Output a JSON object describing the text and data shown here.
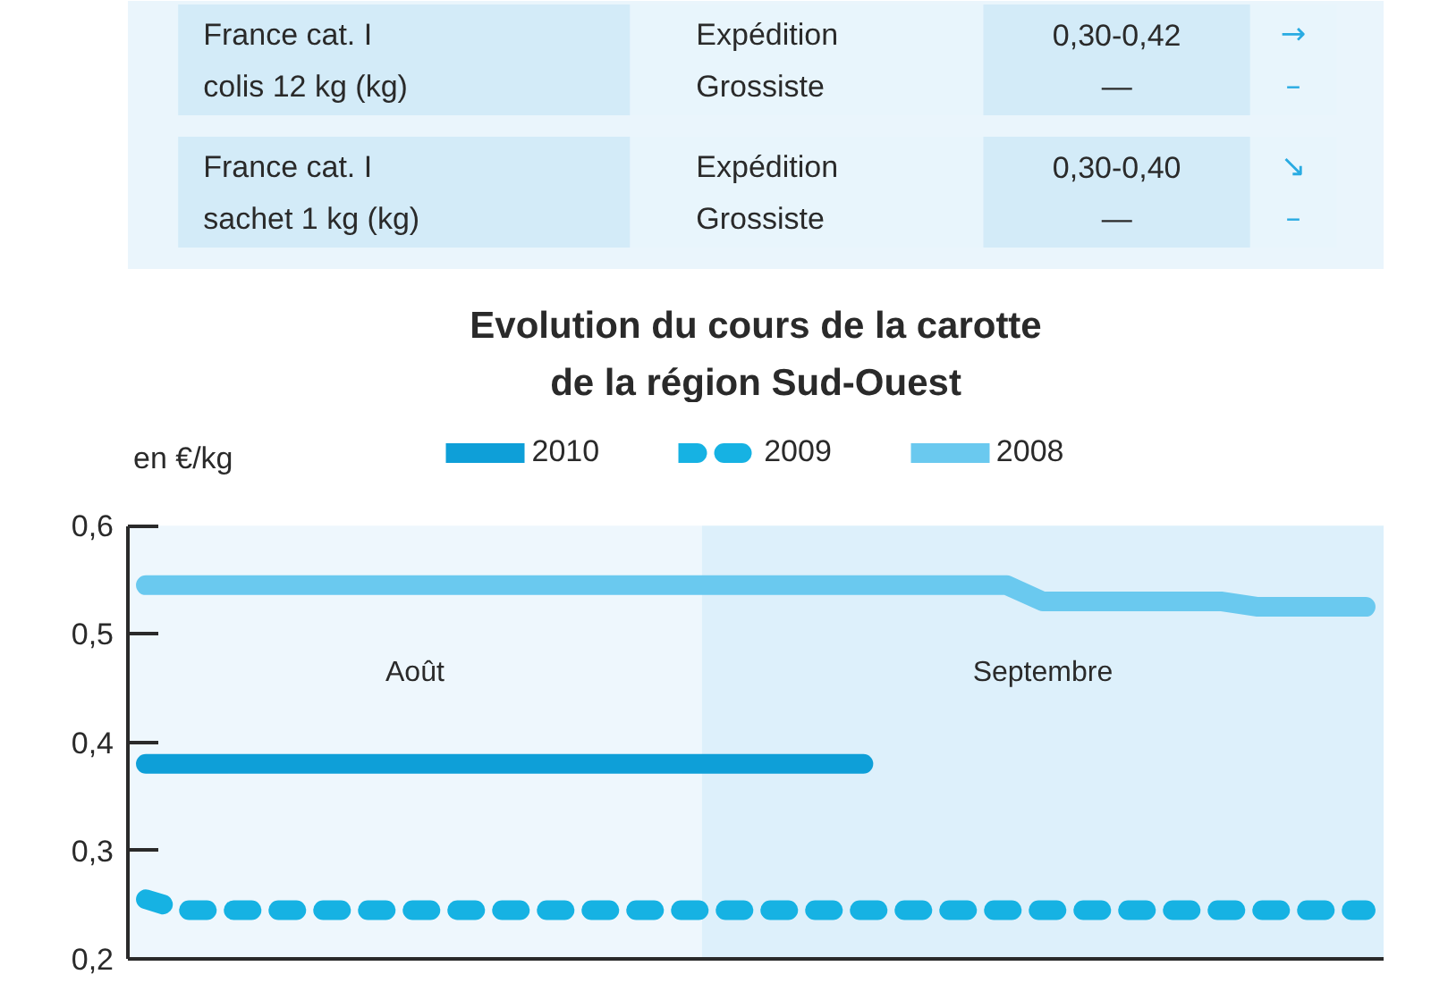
{
  "chart_data": {
    "type": "line",
    "title": "Evolution du cours de la carotte\nde la région Sud-Ouest",
    "ylabel": "en €/kg",
    "annotations": [
      "France cat. I\ncolis 12 kg (kg)",
      "Expédition\nGrossiste",
      "0,30-0,42\n—",
      "→\n–",
      "France cat. I\nsachet 1 kg (kg)",
      "Expédition\nGrossiste",
      "0,30-0,40\n—",
      "↘\n–",
      "Août",
      "Septembre"
    ],
    "categories": [
      null,
      null,
      null,
      null,
      null,
      null,
      null,
      null,
      null,
      null,
      null,
      null,
      null,
      null,
      null,
      null,
      null,
      null,
      null,
      null,
      null,
      null,
      null,
      null,
      null,
      null,
      null,
      null,
      null,
      null,
      null,
      null,
      null,
      null,
      null
    ],
    "ylim": [
      0.2,
      0.6
    ],
    "yticks": [
      {
        "value": 0.2,
        "label": "0,2"
      },
      {
        "value": 0.3,
        "label": "0,3"
      },
      {
        "value": 0.4,
        "label": "0,4"
      },
      {
        "value": 0.5,
        "label": "0,5"
      },
      {
        "value": 0.6,
        "label": "0,6"
      }
    ],
    "tick_labels": "y",
    "legend": "top",
    "series": [
      {
        "name": "2010",
        "color": "#0e9fd8",
        "values": [
          0.38,
          0.38,
          0.38,
          0.38,
          0.38,
          0.38,
          0.38,
          0.38,
          0.38,
          0.38,
          0.38,
          0.38,
          0.38,
          0.38,
          0.38,
          0.38,
          0.38,
          0.38,
          0.38,
          0.38,
          0.38,
          null,
          null,
          null,
          null,
          null,
          null,
          null,
          null,
          null,
          null,
          null,
          null,
          null,
          null
        ]
      },
      {
        "name": "2009",
        "color": "#16b2e3",
        "line_style": "dashed",
        "values": [
          0.255,
          0.245,
          0.245,
          0.245,
          0.245,
          0.245,
          0.245,
          0.245,
          0.245,
          0.245,
          0.245,
          0.245,
          0.245,
          0.245,
          0.245,
          0.245,
          0.245,
          0.245,
          0.245,
          0.245,
          0.245,
          0.245,
          0.245,
          0.245,
          0.245,
          0.245,
          0.245,
          0.245,
          0.245,
          0.245,
          0.245,
          0.245,
          0.245,
          0.245,
          0.245
        ]
      },
      {
        "name": "2008",
        "color": "#6ac9ef",
        "values": [
          0.545,
          0.545,
          0.545,
          0.545,
          0.545,
          0.545,
          0.545,
          0.545,
          0.545,
          0.545,
          0.545,
          0.545,
          0.545,
          0.545,
          0.545,
          0.545,
          0.545,
          0.545,
          0.545,
          0.545,
          0.545,
          0.545,
          0.545,
          0.545,
          0.545,
          0.53,
          0.53,
          0.53,
          0.53,
          0.53,
          0.53,
          0.525,
          0.525,
          0.525,
          0.525
        ]
      }
    ]
  }
}
